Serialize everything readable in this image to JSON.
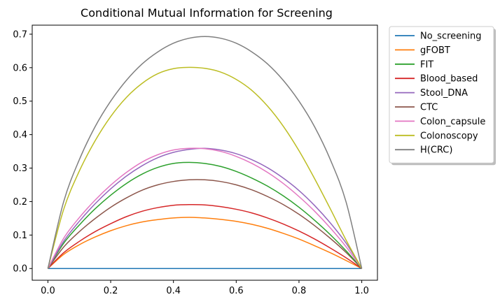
{
  "chart_data": {
    "type": "line",
    "title": "Conditional Mutual Information for Screening",
    "xlabel": "",
    "ylabel": "",
    "xlim": [
      -0.05,
      1.05
    ],
    "ylim": [
      -0.035,
      0.727
    ],
    "xticks": [
      0.0,
      0.2,
      0.4,
      0.6,
      0.8,
      1.0
    ],
    "xtick_labels": [
      "0.0",
      "0.2",
      "0.4",
      "0.6",
      "0.8",
      "1.0"
    ],
    "yticks": [
      0.0,
      0.1,
      0.2,
      0.3,
      0.4,
      0.5,
      0.6,
      0.7
    ],
    "ytick_labels": [
      "0.0",
      "0.1",
      "0.2",
      "0.3",
      "0.4",
      "0.5",
      "0.6",
      "0.7"
    ],
    "grid": false,
    "legend_position": "outside-top-right",
    "x": [
      0.0,
      0.05,
      0.1,
      0.15,
      0.2,
      0.25,
      0.3,
      0.35,
      0.4,
      0.45,
      0.5,
      0.55,
      0.6,
      0.65,
      0.7,
      0.75,
      0.8,
      0.85,
      0.9,
      0.95,
      1.0
    ],
    "series": [
      {
        "name": "No_screening",
        "color": "#1f77b4",
        "values": [
          0,
          0,
          0,
          0,
          0,
          0,
          0,
          0,
          0,
          0,
          0,
          0,
          0,
          0,
          0,
          0,
          0,
          0,
          0,
          0,
          0
        ]
      },
      {
        "name": "gFOBT",
        "color": "#ff7f0e",
        "values": [
          0,
          0.042,
          0.071,
          0.094,
          0.113,
          0.128,
          0.139,
          0.146,
          0.151,
          0.153,
          0.151,
          0.147,
          0.141,
          0.132,
          0.12,
          0.105,
          0.088,
          0.068,
          0.047,
          0.024,
          0
        ]
      },
      {
        "name": "Blood_based",
        "color": "#d62728",
        "values": [
          0,
          0.047,
          0.081,
          0.11,
          0.134,
          0.155,
          0.171,
          0.182,
          0.189,
          0.191,
          0.19,
          0.185,
          0.177,
          0.166,
          0.151,
          0.133,
          0.112,
          0.088,
          0.061,
          0.032,
          0
        ]
      },
      {
        "name": "CTC",
        "color": "#8c564b",
        "values": [
          0,
          0.064,
          0.11,
          0.149,
          0.183,
          0.211,
          0.234,
          0.25,
          0.26,
          0.265,
          0.265,
          0.26,
          0.25,
          0.235,
          0.215,
          0.191,
          0.162,
          0.128,
          0.09,
          0.048,
          0
        ]
      },
      {
        "name": "FIT",
        "color": "#2ca02c",
        "values": [
          0,
          0.075,
          0.13,
          0.178,
          0.219,
          0.254,
          0.282,
          0.302,
          0.314,
          0.317,
          0.314,
          0.305,
          0.29,
          0.27,
          0.246,
          0.217,
          0.183,
          0.144,
          0.101,
          0.053,
          0
        ]
      },
      {
        "name": "Stool_DNA",
        "color": "#9467bd",
        "values": [
          0,
          0.081,
          0.141,
          0.193,
          0.238,
          0.276,
          0.307,
          0.331,
          0.347,
          0.356,
          0.359,
          0.354,
          0.343,
          0.325,
          0.301,
          0.27,
          0.233,
          0.188,
          0.136,
          0.076,
          0
        ]
      },
      {
        "name": "Colon_capsule",
        "color": "#e377c2",
        "values": [
          0,
          0.09,
          0.152,
          0.204,
          0.249,
          0.287,
          0.318,
          0.34,
          0.354,
          0.359,
          0.358,
          0.35,
          0.335,
          0.314,
          0.287,
          0.254,
          0.215,
          0.171,
          0.121,
          0.065,
          0
        ]
      },
      {
        "name": "Colonoscopy",
        "color": "#bcbd22",
        "values": [
          0,
          0.176,
          0.291,
          0.381,
          0.454,
          0.511,
          0.553,
          0.582,
          0.597,
          0.601,
          0.598,
          0.587,
          0.565,
          0.532,
          0.485,
          0.425,
          0.352,
          0.268,
          0.178,
          0.085,
          0
        ]
      },
      {
        "name": "H(CRC)",
        "color": "#7f7f7f",
        "values": [
          0,
          0.199,
          0.325,
          0.423,
          0.5,
          0.562,
          0.611,
          0.647,
          0.673,
          0.688,
          0.693,
          0.688,
          0.673,
          0.647,
          0.611,
          0.562,
          0.5,
          0.423,
          0.325,
          0.199,
          0
        ]
      }
    ],
    "legend_order": [
      "No_screening",
      "gFOBT",
      "FIT",
      "Blood_based",
      "Stool_DNA",
      "CTC",
      "Colon_capsule",
      "Colonoscopy",
      "H(CRC)"
    ]
  }
}
